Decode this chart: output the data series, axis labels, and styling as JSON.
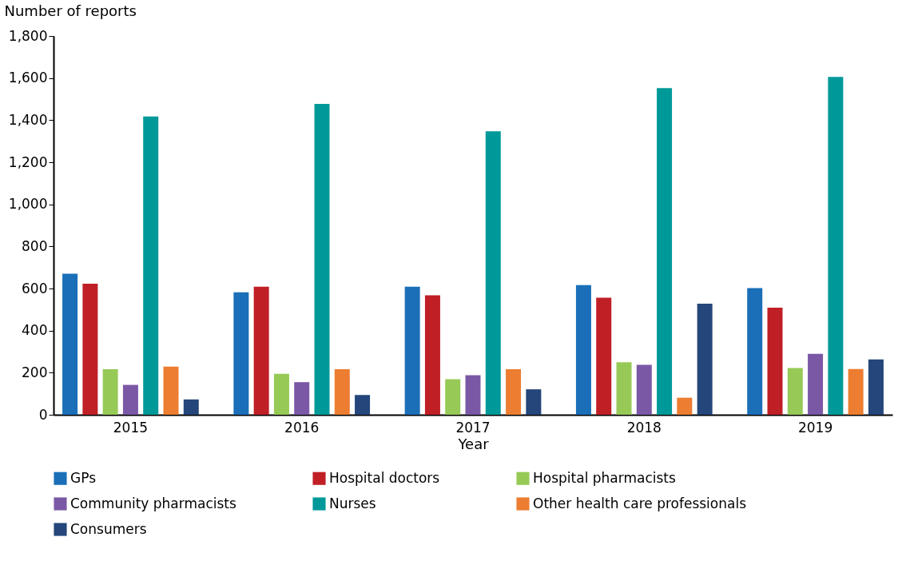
{
  "chart_data": {
    "type": "bar",
    "xlabel": "Year",
    "ylabel": "Number of reports",
    "categories": [
      "2015",
      "2016",
      "2017",
      "2018",
      "2019"
    ],
    "series": [
      {
        "name": "GPs",
        "color": "#1a6fb8",
        "values": [
          670,
          582,
          609,
          616,
          602
        ]
      },
      {
        "name": "Hospital doctors",
        "color": "#c01f26",
        "values": [
          623,
          609,
          568,
          556,
          509
        ]
      },
      {
        "name": "Hospital pharmacists",
        "color": "#97c957",
        "values": [
          216,
          195,
          169,
          250,
          222
        ]
      },
      {
        "name": "Community pharmacists",
        "color": "#7b58a6",
        "values": [
          142,
          155,
          188,
          237,
          290
        ]
      },
      {
        "name": "Nurses",
        "color": "#009999",
        "values": [
          1417,
          1477,
          1347,
          1552,
          1605
        ]
      },
      {
        "name": "Other health care professionals",
        "color": "#ec7d31",
        "values": [
          229,
          216,
          216,
          81,
          217
        ]
      },
      {
        "name": "Consumers",
        "color": "#24467a",
        "values": [
          73,
          94,
          121,
          528,
          263
        ]
      }
    ],
    "ylim": [
      0,
      1800
    ],
    "yticks": [
      0,
      200,
      400,
      600,
      800,
      {
        "value": 1000,
        "label": "1,000"
      },
      {
        "value": 1200,
        "label": "1,200"
      },
      {
        "value": 1400,
        "label": "1,400"
      },
      {
        "value": 1600,
        "label": "1,600"
      },
      {
        "value": 1800,
        "label": "1,800"
      }
    ],
    "grid": false,
    "legend": "bottom"
  }
}
